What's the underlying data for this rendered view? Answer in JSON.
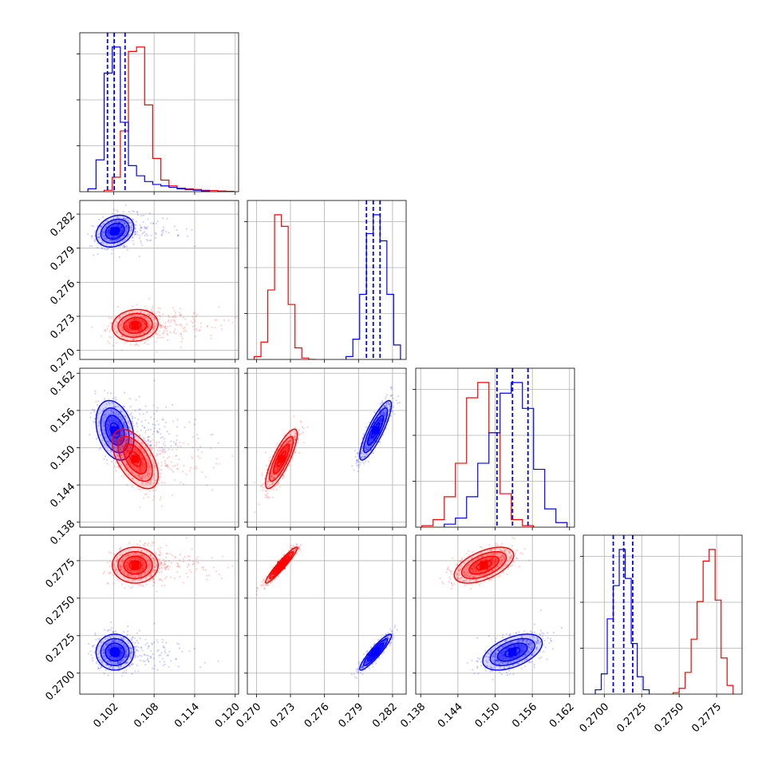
{
  "chart_data": {
    "type": "scatter",
    "subtype": "corner-plot",
    "title": "",
    "grid": true,
    "legend": "none",
    "colors": {
      "series_a": "#0000ff",
      "series_b": "#ff0000"
    },
    "parameters": [
      {
        "range": [
          0.097,
          0.1205
        ],
        "ticks": [
          "0.102",
          "0.108",
          "0.114",
          "0.120"
        ],
        "tick_values": [
          0.102,
          0.108,
          0.114,
          0.12
        ]
      },
      {
        "range": [
          0.2692,
          0.2832
        ],
        "ticks": [
          "0.270",
          "0.273",
          "0.276",
          "0.279",
          "0.282"
        ],
        "tick_values": [
          0.27,
          0.273,
          0.276,
          0.279,
          0.282
        ]
      },
      {
        "range": [
          0.1372,
          0.1628
        ],
        "ticks": [
          "0.138",
          "0.144",
          "0.150",
          "0.156",
          "0.162"
        ],
        "tick_values": [
          0.138,
          0.144,
          0.15,
          0.156,
          0.162
        ]
      },
      {
        "range": [
          0.2686,
          0.2792
        ],
        "ticks": [
          "0.2700",
          "0.2725",
          "0.2750",
          "0.2775"
        ],
        "tick_values": [
          0.27,
          0.2725,
          0.275,
          0.2775
        ]
      }
    ],
    "series": [
      {
        "color": "#0000ff",
        "means": [
          0.1022,
          0.2805,
          0.1528,
          0.2714
        ],
        "sigmas": [
          0.0014,
          0.0007,
          0.0024,
          0.0006
        ],
        "correlations": {
          "0-1": 0.25,
          "0-2": -0.3,
          "0-3": 0.0,
          "1-2": 0.85,
          "1-3": 0.92,
          "2-3": 0.5
        },
        "quantiles": [
          [
            0.1011,
            0.1021,
            0.1037
          ],
          [
            0.2797,
            0.2803,
            0.2809
          ],
          [
            0.1503,
            0.1528,
            0.1553
          ],
          [
            0.2706,
            0.2713,
            0.2719
          ]
        ],
        "histograms": [
          {
            "bin_edges": [
              0.0982,
              0.0994,
              0.1006,
              0.1018,
              0.103,
              0.1042,
              0.1054,
              0.1066,
              0.1078,
              0.109,
              0.1102,
              0.1114,
              0.1126,
              0.1138,
              0.115,
              0.1162
            ],
            "counts": [
              0.02,
              0.22,
              0.82,
              1.0,
              0.48,
              0.18,
              0.11,
              0.07,
              0.05,
              0.04,
              0.03,
              0.02,
              0.015,
              0.01,
              0.005
            ]
          },
          {
            "bin_edges": [
              0.2779,
              0.2785,
              0.2791,
              0.2797,
              0.2803,
              0.2809,
              0.2815,
              0.2821,
              0.2827
            ],
            "counts": [
              0.02,
              0.14,
              0.45,
              0.87,
              1.0,
              0.82,
              0.45,
              0.1
            ]
          },
          {
            "bin_edges": [
              0.1418,
              0.1436,
              0.1454,
              0.1472,
              0.149,
              0.1508,
              0.1526,
              0.1544,
              0.1562,
              0.158,
              0.1598,
              0.1616
            ],
            "counts": [
              0.02,
              0.06,
              0.2,
              0.42,
              0.62,
              0.88,
              0.95,
              0.78,
              0.38,
              0.12,
              0.03
            ]
          },
          {
            "bin_edges": [
              0.2694,
              0.2698,
              0.2702,
              0.2706,
              0.271,
              0.2714,
              0.2718,
              0.2722,
              0.2726,
              0.273
            ],
            "counts": [
              0.03,
              0.14,
              0.52,
              0.75,
              1.0,
              0.8,
              0.35,
              0.12,
              0.03
            ]
          }
        ]
      },
      {
        "color": "#ff0000",
        "means": [
          0.1052,
          0.2722,
          0.1482,
          0.2772
        ],
        "sigmas": [
          0.0017,
          0.0007,
          0.0024,
          0.0006
        ],
        "correlations": {
          "0-1": 0.1,
          "0-2": -0.55,
          "0-3": 0.0,
          "1-2": 0.82,
          "1-3": 0.95,
          "2-3": 0.55
        },
        "quantiles": [],
        "histograms": [
          {
            "bin_edges": [
              0.1006,
              0.1018,
              0.103,
              0.1042,
              0.1054,
              0.1066,
              0.1078,
              0.109,
              0.1102,
              0.1114,
              0.1126,
              0.1138,
              0.115,
              0.1162,
              0.1174,
              0.1186,
              0.1198
            ],
            "counts": [
              0.01,
              0.1,
              0.42,
              0.97,
              1.0,
              0.6,
              0.23,
              0.08,
              0.04,
              0.025,
              0.02,
              0.015,
              0.01,
              0.008,
              0.005,
              0.003
            ]
          },
          {
            "bin_edges": [
              0.2698,
              0.2704,
              0.271,
              0.2716,
              0.2722,
              0.2728,
              0.2734,
              0.274,
              0.2746,
              0.2752
            ],
            "counts": [
              0.02,
              0.12,
              0.48,
              1.0,
              0.92,
              0.38,
              0.08,
              0.01,
              0.0
            ]
          },
          {
            "bin_edges": [
              0.1382,
              0.14,
              0.1418,
              0.1436,
              0.1454,
              0.1472,
              0.149,
              0.1508,
              0.1526,
              0.1544,
              0.1562
            ],
            "counts": [
              0.01,
              0.05,
              0.2,
              0.42,
              0.85,
              0.95,
              0.62,
              0.22,
              0.05,
              0.01
            ]
          },
          {
            "bin_edges": [
              0.2746,
              0.275,
              0.2754,
              0.2758,
              0.2762,
              0.2766,
              0.277,
              0.2774,
              0.2778,
              0.2782,
              0.2786
            ],
            "counts": [
              0.01,
              0.04,
              0.15,
              0.38,
              0.64,
              0.92,
              1.0,
              0.65,
              0.25,
              0.06
            ]
          }
        ]
      }
    ]
  }
}
